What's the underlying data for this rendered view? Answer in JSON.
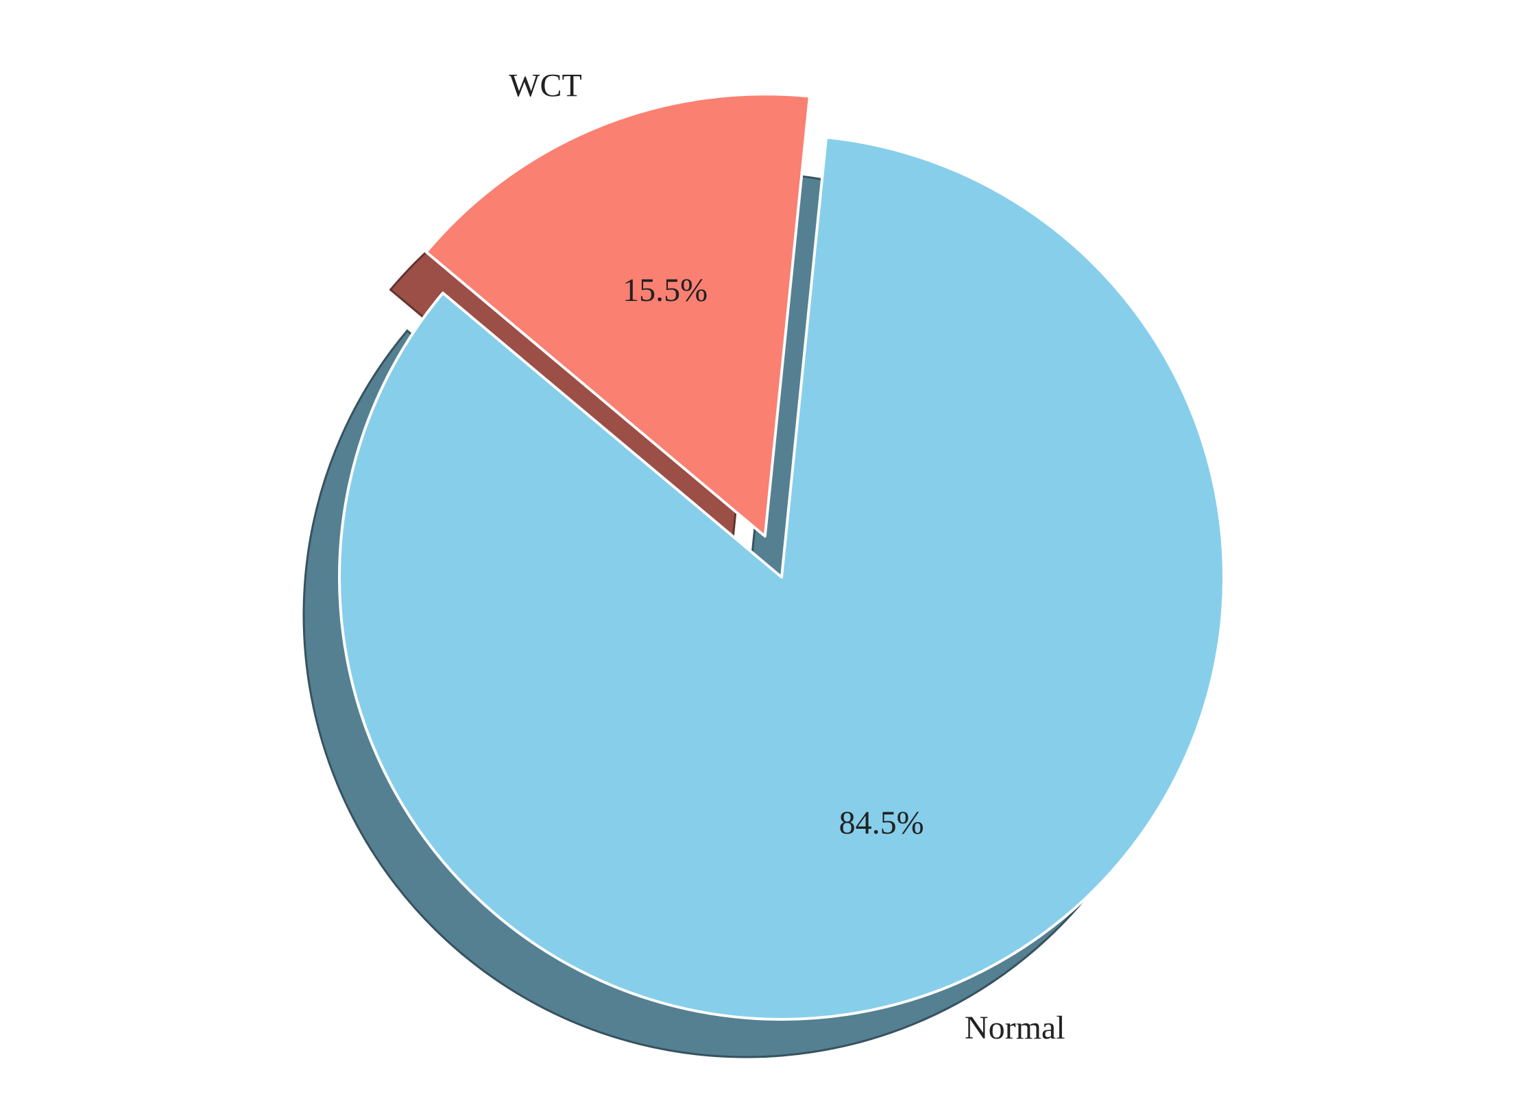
{
  "chart_data": {
    "type": "pie",
    "categories": [
      "Normal",
      "WCT"
    ],
    "values": [
      84.5,
      15.5
    ],
    "percent_labels": [
      "84.5%",
      "15.5%"
    ],
    "colors": [
      "#87CEEB",
      "#FA8072"
    ],
    "explode": [
      0,
      0.1
    ],
    "shadow": true,
    "start_angle_deg": 140,
    "title": "",
    "legend": "none"
  }
}
